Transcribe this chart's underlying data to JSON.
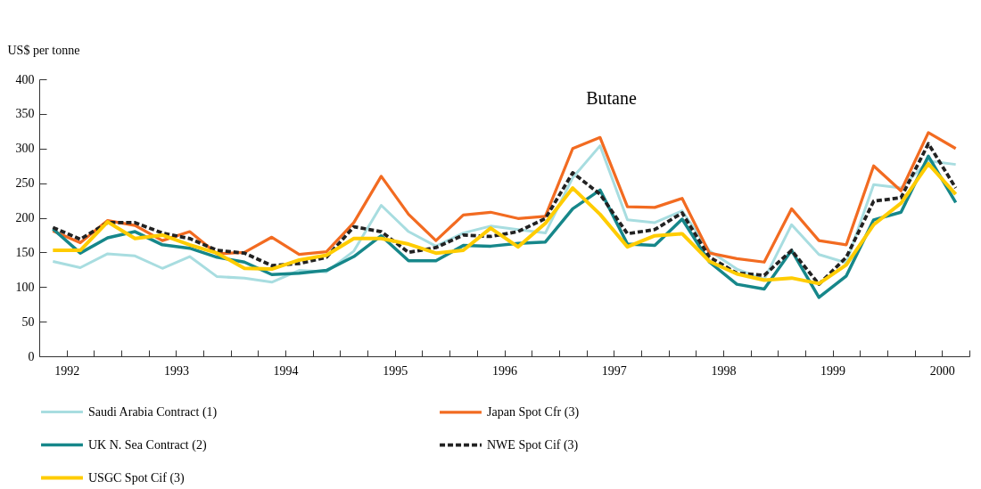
{
  "chart_data": {
    "type": "line",
    "title": "Butane",
    "ylabel": "US$ per tonne",
    "x": [
      1991.875,
      1992.125,
      1992.375,
      1992.625,
      1992.875,
      1993.125,
      1993.375,
      1993.625,
      1993.875,
      1994.125,
      1994.375,
      1994.625,
      1994.875,
      1995.125,
      1995.375,
      1995.625,
      1995.875,
      1996.125,
      1996.375,
      1996.625,
      1996.875,
      1997.125,
      1997.375,
      1997.625,
      1997.875,
      1998.125,
      1998.375,
      1998.625,
      1998.875,
      1999.125,
      1999.375,
      1999.625,
      1999.875,
      2000.125
    ],
    "series": [
      {
        "name": "Saudi Arabia Contract (1)",
        "color": "#a8dde0",
        "values": [
          137,
          128,
          148,
          145,
          127,
          144,
          115,
          113,
          107,
          124,
          122,
          152,
          218,
          180,
          159,
          178,
          188,
          183,
          178,
          258,
          304,
          197,
          193,
          210,
          152,
          126,
          111,
          190,
          147,
          135,
          248,
          243,
          282,
          277
        ]
      },
      {
        "name": "Japan Spot Cfr (3)",
        "color": "#f26b21",
        "values": [
          181,
          164,
          196,
          189,
          167,
          180,
          148,
          150,
          172,
          147,
          151,
          193,
          260,
          205,
          167,
          204,
          208,
          199,
          202,
          300,
          316,
          216,
          215,
          228,
          149,
          141,
          136,
          213,
          167,
          161,
          275,
          239,
          323,
          300
        ]
      },
      {
        "name": "UK N. Sea Contract (2)",
        "color": "#16878a",
        "values": [
          184,
          149,
          171,
          180,
          161,
          156,
          143,
          136,
          118,
          120,
          124,
          144,
          174,
          138,
          138,
          160,
          159,
          163,
          165,
          213,
          240,
          162,
          160,
          198,
          136,
          104,
          97,
          153,
          85,
          116,
          197,
          208,
          289,
          222
        ]
      },
      {
        "name": "NWE Spot Cif (3)",
        "color": "#222222",
        "line_style": "dashed",
        "values": [
          186,
          169,
          193,
          193,
          178,
          170,
          153,
          149,
          131,
          134,
          143,
          187,
          180,
          150,
          157,
          175,
          173,
          180,
          199,
          265,
          234,
          177,
          183,
          207,
          143,
          120,
          117,
          153,
          104,
          143,
          224,
          229,
          307,
          243
        ]
      },
      {
        "name": "USGC Spot Cif (3)",
        "color": "#ffcc00",
        "values": [
          153,
          153,
          194,
          170,
          175,
          161,
          149,
          127,
          126,
          139,
          146,
          170,
          170,
          162,
          149,
          153,
          185,
          158,
          192,
          243,
          205,
          158,
          174,
          177,
          137,
          119,
          110,
          113,
          105,
          132,
          190,
          221,
          278,
          234
        ]
      }
    ],
    "xlim": [
      1991.75,
      2000.25
    ],
    "xticks": [
      1992,
      {
        "value": 1992.25,
        "label": null
      },
      {
        "value": 1992.5,
        "label": null
      },
      {
        "value": 1992.75,
        "label": null
      },
      1993,
      {
        "value": 1993.25,
        "label": null
      },
      {
        "value": 1993.5,
        "label": null
      },
      {
        "value": 1993.75,
        "label": null
      },
      1994,
      {
        "value": 1994.25,
        "label": null
      },
      {
        "value": 1994.5,
        "label": null
      },
      {
        "value": 1994.75,
        "label": null
      },
      1995,
      {
        "value": 1995.25,
        "label": null
      },
      {
        "value": 1995.5,
        "label": null
      },
      {
        "value": 1995.75,
        "label": null
      },
      1996,
      {
        "value": 1996.25,
        "label": null
      },
      {
        "value": 1996.5,
        "label": null
      },
      {
        "value": 1996.75,
        "label": null
      },
      1997,
      {
        "value": 1997.25,
        "label": null
      },
      {
        "value": 1997.5,
        "label": null
      },
      {
        "value": 1997.75,
        "label": null
      },
      1998,
      {
        "value": 1998.25,
        "label": null
      },
      {
        "value": 1998.5,
        "label": null
      },
      {
        "value": 1998.75,
        "label": null
      },
      1999,
      {
        "value": 1999.25,
        "label": null
      },
      {
        "value": 1999.5,
        "label": null
      },
      {
        "value": 1999.75,
        "label": null
      },
      2000,
      {
        "value": 2000.25,
        "label": null
      }
    ],
    "ylim": [
      0,
      400
    ],
    "yticks": [
      0,
      50,
      100,
      150,
      200,
      250,
      300,
      350,
      400
    ],
    "grid": false,
    "legend": "bottom"
  }
}
